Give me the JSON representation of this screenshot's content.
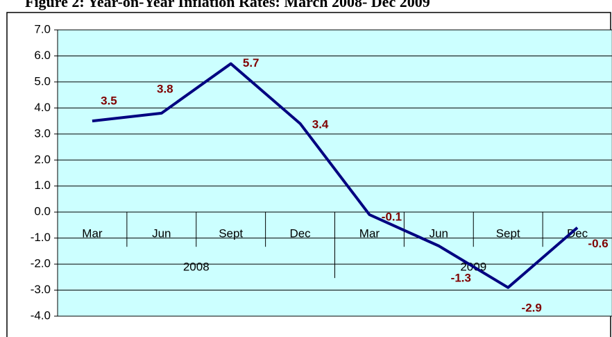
{
  "chart_data": {
    "type": "line",
    "title": "Figure 2: Year-on-Year Inflation Rates: March 2008- Dec 2009",
    "categories": [
      "Mar",
      "Jun",
      "Sept",
      "Dec",
      "Mar",
      "Jun",
      "Sept",
      "Dec"
    ],
    "category_groups": [
      "2008",
      "2009"
    ],
    "series": [
      {
        "color": "#000080",
        "label_color": "#800000",
        "values": [
          3.5,
          3.8,
          5.7,
          3.4,
          -0.1,
          -1.3,
          -2.9,
          -0.6
        ]
      }
    ],
    "ylim": [
      -4,
      7
    ],
    "yticks": [
      {
        "value": -4,
        "label": "-4.0"
      },
      {
        "value": -3,
        "label": "-3.0"
      },
      {
        "value": -2,
        "label": "-2.0"
      },
      {
        "value": -1,
        "label": "-1.0"
      },
      {
        "value": 0,
        "label": "0.0"
      },
      {
        "value": 1,
        "label": "1.0"
      },
      {
        "value": 2,
        "label": "2.0"
      },
      {
        "value": 3,
        "label": "3.0"
      },
      {
        "value": 4,
        "label": "4.0"
      },
      {
        "value": 5,
        "label": "5.0"
      },
      {
        "value": 6,
        "label": "6.0"
      },
      {
        "value": 7,
        "label": "7.0"
      }
    ],
    "grid": true,
    "plot_background": "#ccffff"
  }
}
